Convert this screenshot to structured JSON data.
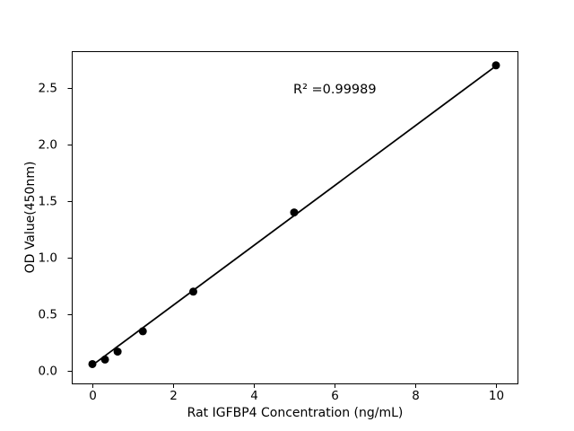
{
  "chart_data": {
    "type": "scatter",
    "title": "",
    "xlabel": "Rat IGFBP4 Concentration (ng/mL)",
    "ylabel": "OD Value(450nm)",
    "annotation": "R² =0.99989",
    "x": [
      0,
      0.3125,
      0.625,
      1.25,
      2.5,
      5,
      10
    ],
    "y": [
      0.06,
      0.1,
      0.17,
      0.35,
      0.7,
      1.4,
      2.7
    ],
    "fit_line": {
      "x": [
        0,
        10
      ],
      "y": [
        0.05,
        2.695
      ],
      "r_squared_value": 0.99989
    },
    "x_ticks": [
      "0",
      "2",
      "4",
      "6",
      "8",
      "10"
    ],
    "y_ticks": [
      "0.0",
      "0.5",
      "1.0",
      "1.5",
      "2.0",
      "2.5"
    ],
    "xlim": [
      -0.5,
      10.55
    ],
    "ylim": [
      -0.11,
      2.83
    ],
    "grid": false,
    "legend": null,
    "marker_color": "#000000",
    "line_color": "#000000",
    "axis_color": "#000000",
    "background_color": "#ffffff"
  }
}
